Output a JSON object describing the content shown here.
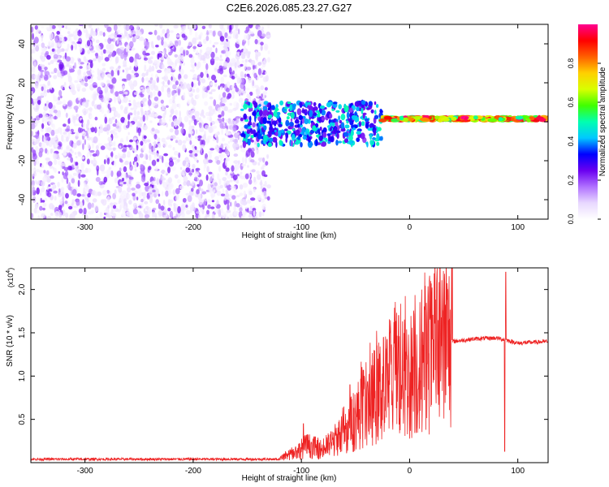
{
  "title": "C2E6.2026.085.23.27.G27",
  "colorbar": {
    "label": "Normalized spectral amplitude",
    "range": [
      0,
      1
    ],
    "ticks": [
      "0.0",
      "0.2",
      "0.4",
      "0.6",
      "0.8"
    ],
    "tick_values": [
      0.0,
      0.2,
      0.4,
      0.6,
      0.8
    ],
    "colormap": [
      "#ffffff",
      "#e8d8ff",
      "#b070ff",
      "#6a00f0",
      "#0000ff",
      "#00c8ff",
      "#00ffb0",
      "#40ff00",
      "#d8ff00",
      "#ffd000",
      "#ff6000",
      "#ff0000",
      "#ff0090"
    ]
  },
  "chart_data": [
    {
      "type": "heatmap",
      "xlabel": "Height of straight line (km)",
      "ylabel": "Frequency (Hz)",
      "xlim": [
        -350,
        128
      ],
      "ylim": [
        -50,
        50
      ],
      "xticks": [
        -300,
        -200,
        -100,
        0,
        100
      ],
      "yticks": [
        -40,
        -20,
        0,
        20,
        40
      ],
      "xtick_labels": [
        "-300",
        "-200",
        "-100",
        "0",
        "100"
      ],
      "ytick_labels": [
        "-40",
        "-20",
        "0",
        "20",
        "40"
      ],
      "regions": [
        {
          "x": [
            -350,
            -130
          ],
          "y": [
            -50,
            50
          ],
          "pattern": "diffuse noise",
          "amplitude": [
            0.05,
            0.2
          ]
        },
        {
          "x": [
            -155,
            -25
          ],
          "y": [
            -12,
            10
          ],
          "pattern": "scattered band",
          "amplitude": [
            0.2,
            0.5
          ]
        },
        {
          "x": [
            -25,
            128
          ],
          "y": [
            -2,
            4
          ],
          "pattern": "narrow line",
          "center": 1.5,
          "amplitude": [
            0.5,
            1.0
          ]
        }
      ]
    },
    {
      "type": "line",
      "xlabel": "Height of straight line (km)",
      "ylabel": "SNR (10 * v/v)",
      "y_multiplier": "(x10",
      "y_multiplier_exp": "4",
      "y_multiplier_close": ")",
      "xlim": [
        -350,
        128
      ],
      "ylim": [
        0,
        2.25
      ],
      "xticks": [
        -300,
        -200,
        -100,
        0,
        100
      ],
      "yticks": [
        0.5,
        1.0,
        1.5,
        2.0
      ],
      "xtick_labels": [
        "-300",
        "-200",
        "-100",
        "0",
        "100"
      ],
      "ytick_labels": [
        "0.5",
        "1.0",
        "1.5",
        "2.0"
      ],
      "color": "#ee2222",
      "envelope": [
        {
          "x": -350,
          "y": 0.04
        },
        {
          "x": -120,
          "y": 0.04
        },
        {
          "x": -105,
          "y": 0.12
        },
        {
          "x": -95,
          "y": 0.2
        },
        {
          "x": -80,
          "y": 0.15
        },
        {
          "x": -60,
          "y": 0.35
        },
        {
          "x": -45,
          "y": 0.6
        },
        {
          "x": -30,
          "y": 0.8
        },
        {
          "x": -15,
          "y": 0.95
        },
        {
          "x": 0,
          "y": 1.0
        },
        {
          "x": 10,
          "y": 1.1
        },
        {
          "x": 20,
          "y": 1.25
        },
        {
          "x": 30,
          "y": 1.35
        },
        {
          "x": 40,
          "y": 1.4
        },
        {
          "x": 60,
          "y": 1.43
        },
        {
          "x": 80,
          "y": 1.44
        },
        {
          "x": 88,
          "y": 1.42
        },
        {
          "x": 100,
          "y": 1.38
        },
        {
          "x": 128,
          "y": 1.4
        }
      ],
      "spikes": [
        {
          "x": -98,
          "y": 0.45
        },
        {
          "x": -55,
          "y": 0.9
        },
        {
          "x": -44,
          "y": 1.1
        },
        {
          "x": -30,
          "y": 1.35
        },
        {
          "x": -18,
          "y": 1.5
        },
        {
          "x": -10,
          "y": 1.7
        },
        {
          "x": 89,
          "y": 2.2
        },
        {
          "x": 88,
          "y": 0.13
        }
      ]
    }
  ]
}
